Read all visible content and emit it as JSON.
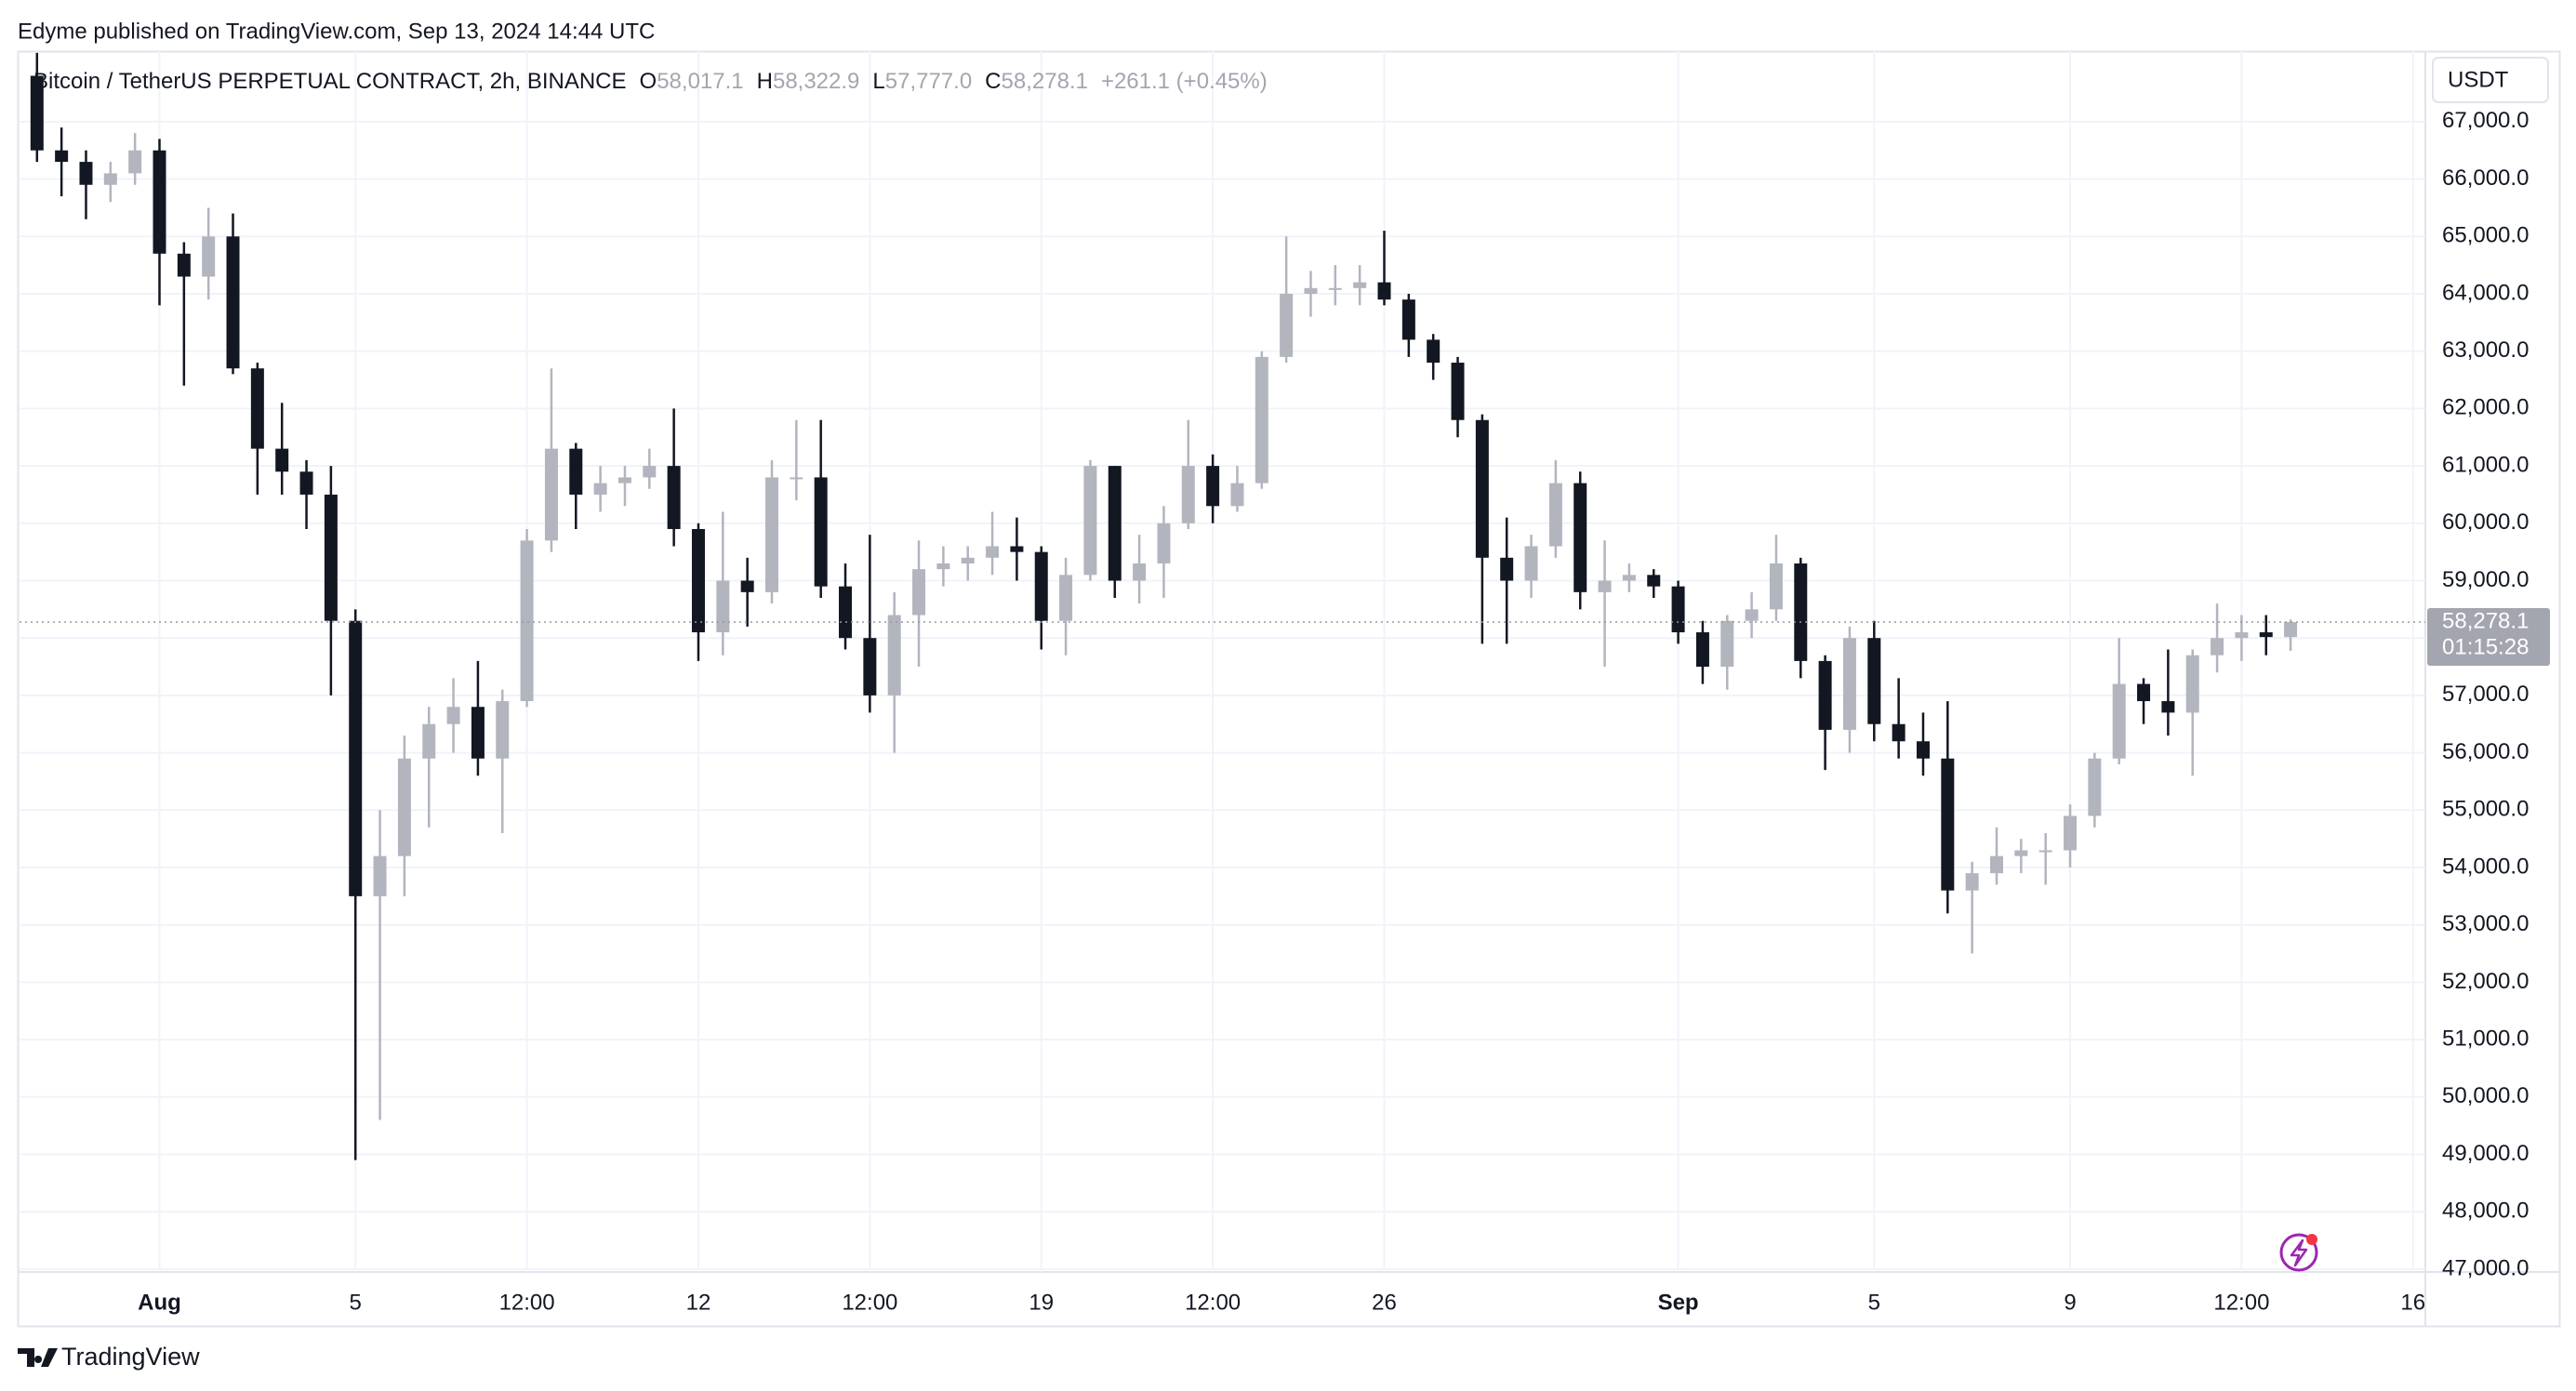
{
  "header": {
    "title": "Edyme published on TradingView.com, Sep 13, 2024 14:44 UTC"
  },
  "legend": {
    "symbol": "Bitcoin / TetherUS PERPETUAL CONTRACT, 2h, BINANCE",
    "open_label": "O",
    "open": "58,017.1",
    "high_label": "H",
    "high": "58,322.9",
    "low_label": "L",
    "low": "57,777.0",
    "close_label": "C",
    "close": "58,278.1",
    "change": "+261.1 (+0.45%)"
  },
  "currency": "USDT",
  "last_price": {
    "value": 58278.1,
    "label": "58,278.1",
    "countdown": "01:15:28"
  },
  "footer": {
    "brand": "TradingView"
  },
  "chart_data": {
    "type": "candlestick",
    "up_color": "#b2b5be",
    "down_color": "#131722",
    "grid": true,
    "categories": [
      null,
      null,
      null,
      null,
      null,
      "Aug",
      null,
      null,
      null,
      null,
      null,
      null,
      null,
      "5",
      null,
      null,
      null,
      null,
      null,
      null,
      "12:00",
      null,
      null,
      null,
      null,
      null,
      null,
      "12",
      null,
      null,
      null,
      null,
      null,
      null,
      "12:00",
      null,
      null,
      null,
      null,
      null,
      null,
      "19",
      null,
      null,
      null,
      null,
      null,
      null,
      "12:00",
      null,
      null,
      null,
      null,
      null,
      null,
      "26",
      null,
      null,
      null,
      null,
      null,
      null,
      null,
      null,
      null,
      null,
      null,
      "Sep",
      null,
      null,
      null,
      null,
      null,
      null,
      null,
      "5",
      null,
      null,
      null,
      null,
      null,
      null,
      null,
      "9",
      null,
      null,
      null,
      null,
      null,
      null,
      "12:00",
      null,
      null,
      null,
      null,
      null,
      null,
      "16"
    ],
    "open": [
      67800,
      66500,
      66300,
      65900,
      66100,
      66500,
      64700,
      64300,
      65000,
      62700,
      61300,
      60900,
      60500,
      58300,
      53500,
      54200,
      55900,
      56500,
      56800,
      55900,
      56900,
      59700,
      61300,
      60500,
      60700,
      60800,
      61000,
      59900,
      58100,
      59000,
      58800,
      60800,
      60800,
      58900,
      58000,
      57000,
      58400,
      59200,
      59300,
      59400,
      59600,
      59500,
      58300,
      59100,
      61000,
      59000,
      59300,
      60000,
      61000,
      60300,
      60700,
      62900,
      64000,
      64100,
      64100,
      64200,
      63900,
      63200,
      62800,
      61800,
      59400,
      59000,
      59600,
      60700,
      58800,
      59000,
      59100,
      58900,
      58100,
      57500,
      58300,
      58500,
      59300,
      57600,
      56400,
      58000,
      56500,
      56200,
      55900,
      53600,
      53900,
      54200,
      54300,
      54300,
      54900,
      55900,
      57200,
      56900,
      56700,
      57700,
      58000,
      58100,
      58017.1,
      null,
      null,
      null,
      null,
      null
    ],
    "high": [
      68200,
      66900,
      66500,
      66300,
      66800,
      66700,
      64900,
      65500,
      65400,
      62800,
      62100,
      61100,
      61000,
      58500,
      55000,
      56300,
      56800,
      57300,
      57600,
      57100,
      59900,
      62700,
      61400,
      61000,
      61000,
      61300,
      62000,
      60000,
      60200,
      59400,
      61100,
      61800,
      61800,
      59300,
      59800,
      58800,
      59700,
      59600,
      59600,
      60200,
      60100,
      59600,
      59400,
      61100,
      61000,
      59800,
      60300,
      61800,
      61200,
      61000,
      63000,
      65000,
      64400,
      64500,
      64500,
      65100,
      64000,
      63300,
      62900,
      61900,
      60100,
      59800,
      61100,
      60900,
      59700,
      59300,
      59200,
      59000,
      58300,
      58400,
      58800,
      59800,
      59400,
      57700,
      58200,
      58300,
      57300,
      56700,
      56900,
      54100,
      54700,
      54500,
      54600,
      55100,
      56000,
      58000,
      57300,
      57800,
      57800,
      58600,
      58400,
      58400,
      58322.9,
      null,
      null,
      null,
      null,
      null
    ],
    "low": [
      66300,
      65700,
      65300,
      65600,
      65900,
      63800,
      62400,
      63900,
      62600,
      60500,
      60500,
      59900,
      57000,
      48900,
      49600,
      53500,
      54700,
      56000,
      55600,
      54600,
      56800,
      59500,
      59900,
      60200,
      60300,
      60600,
      59600,
      57600,
      57700,
      58200,
      58600,
      60400,
      58700,
      57800,
      56700,
      56000,
      57500,
      58900,
      59000,
      59100,
      59000,
      57800,
      57700,
      59000,
      58700,
      58600,
      58700,
      59900,
      60000,
      60200,
      60600,
      62800,
      63600,
      63800,
      63800,
      63800,
      62900,
      62500,
      61500,
      57900,
      57900,
      58700,
      59400,
      58500,
      57500,
      58800,
      58700,
      57900,
      57200,
      57100,
      58000,
      58300,
      57300,
      55700,
      56000,
      56200,
      55900,
      55600,
      53200,
      52500,
      53700,
      53900,
      53700,
      54000,
      54700,
      55800,
      56500,
      56300,
      55600,
      57400,
      57600,
      57700,
      57777.0,
      null,
      null,
      null,
      null,
      null
    ],
    "close": [
      66500,
      66300,
      65900,
      66100,
      66500,
      64700,
      64300,
      65000,
      62700,
      61300,
      60900,
      60500,
      58300,
      53500,
      54200,
      55900,
      56500,
      56800,
      55900,
      56900,
      59700,
      61300,
      60500,
      60700,
      60800,
      61000,
      59900,
      58100,
      59000,
      58800,
      60800,
      60800,
      58900,
      58000,
      57000,
      58400,
      59200,
      59300,
      59400,
      59600,
      59500,
      58300,
      59100,
      61000,
      59000,
      59300,
      60000,
      61000,
      60300,
      60700,
      62900,
      64000,
      64100,
      64100,
      64200,
      63900,
      63200,
      62800,
      61800,
      59400,
      59000,
      59600,
      60700,
      58800,
      59000,
      59100,
      58900,
      58100,
      57500,
      58300,
      58500,
      59300,
      57600,
      56400,
      58000,
      56500,
      56200,
      55900,
      53600,
      53900,
      54200,
      54300,
      54300,
      54900,
      55900,
      57200,
      56900,
      56700,
      57700,
      58000,
      58100,
      58017.1,
      58278.1,
      null,
      null,
      null,
      null,
      null
    ],
    "ylim": [
      46950,
      68230
    ],
    "yticks": [
      {
        "value": 47000,
        "label": "47,000.0"
      },
      {
        "value": 48000,
        "label": "48,000.0"
      },
      {
        "value": 49000,
        "label": "49,000.0"
      },
      {
        "value": 50000,
        "label": "50,000.0"
      },
      {
        "value": 51000,
        "label": "51,000.0"
      },
      {
        "value": 52000,
        "label": "52,000.0"
      },
      {
        "value": 53000,
        "label": "53,000.0"
      },
      {
        "value": 54000,
        "label": "54,000.0"
      },
      {
        "value": 55000,
        "label": "55,000.0"
      },
      {
        "value": 56000,
        "label": "56,000.0"
      },
      {
        "value": 57000,
        "label": "57,000.0"
      },
      {
        "value": 58000,
        "label": "58,000.0"
      },
      {
        "value": 59000,
        "label": "59,000.0"
      },
      {
        "value": 60000,
        "label": "60,000.0"
      },
      {
        "value": 61000,
        "label": "61,000.0"
      },
      {
        "value": 62000,
        "label": "62,000.0"
      },
      {
        "value": 63000,
        "label": "63,000.0"
      },
      {
        "value": 64000,
        "label": "64,000.0"
      },
      {
        "value": 65000,
        "label": "65,000.0"
      },
      {
        "value": 66000,
        "label": "66,000.0"
      },
      {
        "value": 67000,
        "label": "67,000.0"
      }
    ]
  }
}
